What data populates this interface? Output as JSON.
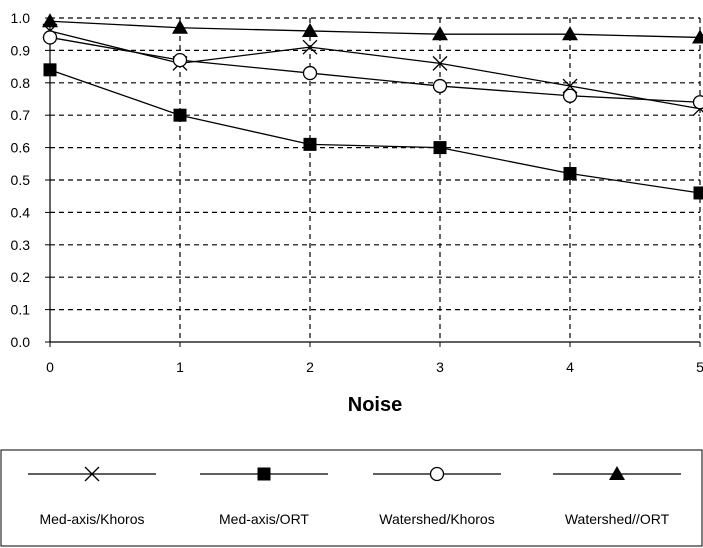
{
  "chart_data": {
    "type": "line",
    "title": "",
    "xlabel": "Noise",
    "ylabel": "",
    "x": [
      0,
      1,
      2,
      3,
      4,
      5
    ],
    "xlim": [
      0,
      5
    ],
    "ylim": [
      0.0,
      1.0
    ],
    "x_ticks": [
      "0",
      "1",
      "2",
      "3",
      "4",
      "5"
    ],
    "y_ticks": [
      "0.0",
      "0.1",
      "0.2",
      "0.3",
      "0.4",
      "0.5",
      "0.6",
      "0.7",
      "0.8",
      "0.9",
      "1.0"
    ],
    "grid": true,
    "legend_position": "bottom",
    "series": [
      {
        "name": "Med-axis/Khoros",
        "marker": "x",
        "color": "#000000",
        "values": [
          0.96,
          0.86,
          0.91,
          0.86,
          0.79,
          0.72
        ]
      },
      {
        "name": "Med-axis/ORT",
        "marker": "square",
        "color": "#000000",
        "values": [
          0.84,
          0.7,
          0.61,
          0.6,
          0.52,
          0.46
        ]
      },
      {
        "name": "Watershed/Khoros",
        "marker": "circle",
        "color": "#000000",
        "values": [
          0.94,
          0.87,
          0.83,
          0.79,
          0.76,
          0.74
        ]
      },
      {
        "name": "Watershed//ORT",
        "marker": "triangle",
        "color": "#000000",
        "values": [
          0.99,
          0.97,
          0.96,
          0.95,
          0.95,
          0.94
        ]
      }
    ]
  }
}
